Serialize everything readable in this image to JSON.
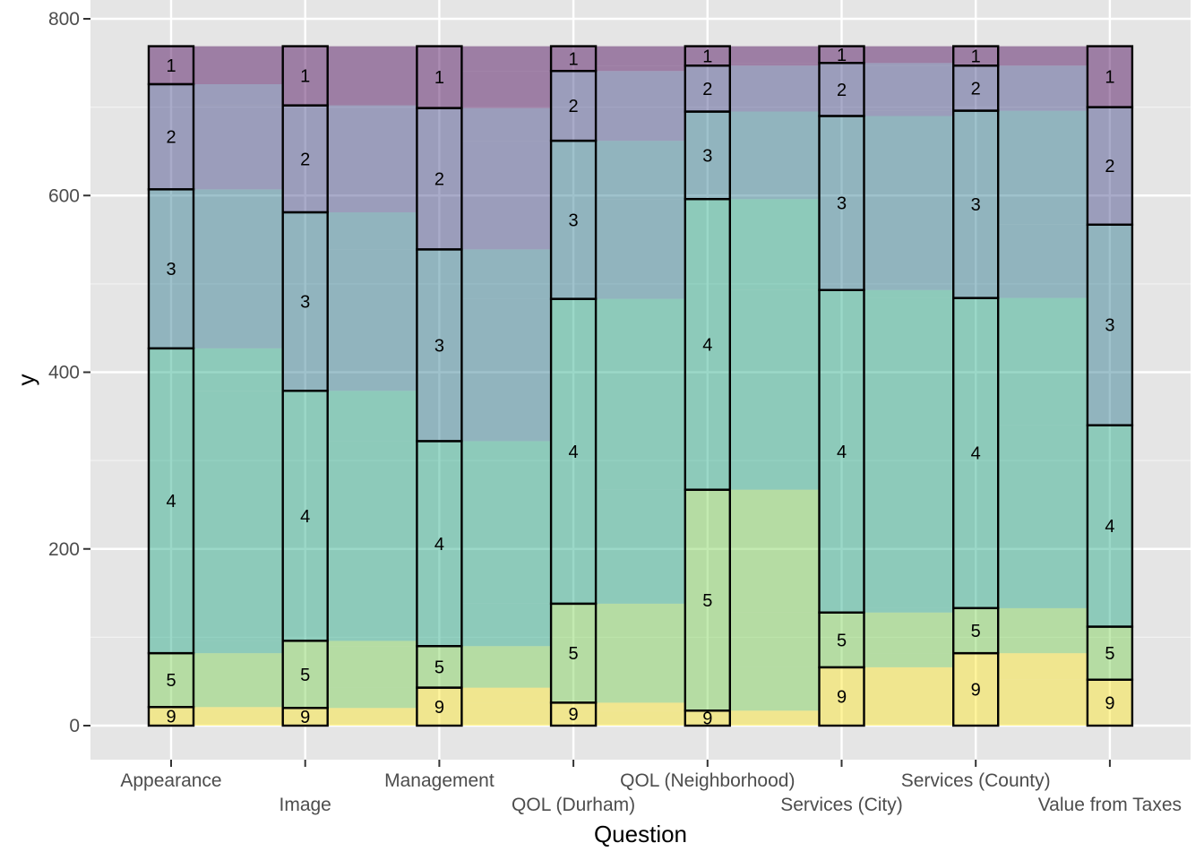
{
  "chart_data": {
    "type": "alluvial",
    "title": "",
    "xlabel": "Question",
    "ylabel": "y",
    "ylim": [
      0,
      800
    ],
    "y_ticks": [
      0,
      200,
      400,
      600,
      800
    ],
    "grid": true,
    "legend": "none",
    "categories": [
      "Appearance",
      "Image",
      "Management",
      "QOL (Durham)",
      "QOL (Neighborhood)",
      "Services (City)",
      "Services (County)",
      "Value from Taxes"
    ],
    "strata_order": [
      "9",
      "5",
      "4",
      "3",
      "2",
      "1"
    ],
    "stratum_colors": {
      "1": "#440154",
      "2": "#414487",
      "3": "#2a788e",
      "4": "#22a884",
      "5": "#7ad151",
      "9": "#fde725"
    },
    "columns": [
      {
        "question": "Appearance",
        "strata": [
          {
            "label": "9",
            "value": 21
          },
          {
            "label": "5",
            "value": 61
          },
          {
            "label": "4",
            "value": 345
          },
          {
            "label": "3",
            "value": 180
          },
          {
            "label": "2",
            "value": 119
          },
          {
            "label": "1",
            "value": 43
          }
        ]
      },
      {
        "question": "Image",
        "strata": [
          {
            "label": "9",
            "value": 20
          },
          {
            "label": "5",
            "value": 76
          },
          {
            "label": "4",
            "value": 283
          },
          {
            "label": "3",
            "value": 202
          },
          {
            "label": "2",
            "value": 121
          },
          {
            "label": "1",
            "value": 67
          }
        ]
      },
      {
        "question": "Management",
        "strata": [
          {
            "label": "9",
            "value": 43
          },
          {
            "label": "5",
            "value": 47
          },
          {
            "label": "4",
            "value": 232
          },
          {
            "label": "3",
            "value": 217
          },
          {
            "label": "2",
            "value": 160
          },
          {
            "label": "1",
            "value": 70
          }
        ]
      },
      {
        "question": "QOL (Durham)",
        "strata": [
          {
            "label": "9",
            "value": 26
          },
          {
            "label": "5",
            "value": 112
          },
          {
            "label": "4",
            "value": 345
          },
          {
            "label": "3",
            "value": 179
          },
          {
            "label": "2",
            "value": 79
          },
          {
            "label": "1",
            "value": 28
          }
        ]
      },
      {
        "question": "QOL (Neighborhood)",
        "strata": [
          {
            "label": "9",
            "value": 17
          },
          {
            "label": "5",
            "value": 250
          },
          {
            "label": "4",
            "value": 329
          },
          {
            "label": "3",
            "value": 99
          },
          {
            "label": "2",
            "value": 52
          },
          {
            "label": "1",
            "value": 22
          }
        ]
      },
      {
        "question": "Services (City)",
        "strata": [
          {
            "label": "9",
            "value": 66
          },
          {
            "label": "5",
            "value": 62
          },
          {
            "label": "4",
            "value": 365
          },
          {
            "label": "3",
            "value": 197
          },
          {
            "label": "2",
            "value": 60
          },
          {
            "label": "1",
            "value": 19
          }
        ]
      },
      {
        "question": "Services (County)",
        "strata": [
          {
            "label": "9",
            "value": 82
          },
          {
            "label": "5",
            "value": 51
          },
          {
            "label": "4",
            "value": 351
          },
          {
            "label": "3",
            "value": 212
          },
          {
            "label": "2",
            "value": 51
          },
          {
            "label": "1",
            "value": 22
          }
        ]
      },
      {
        "question": "Value from Taxes",
        "strata": [
          {
            "label": "9",
            "value": 52
          },
          {
            "label": "5",
            "value": 60
          },
          {
            "label": "4",
            "value": 228
          },
          {
            "label": "3",
            "value": 227
          },
          {
            "label": "2",
            "value": 133
          },
          {
            "label": "1",
            "value": 69
          }
        ]
      }
    ]
  }
}
